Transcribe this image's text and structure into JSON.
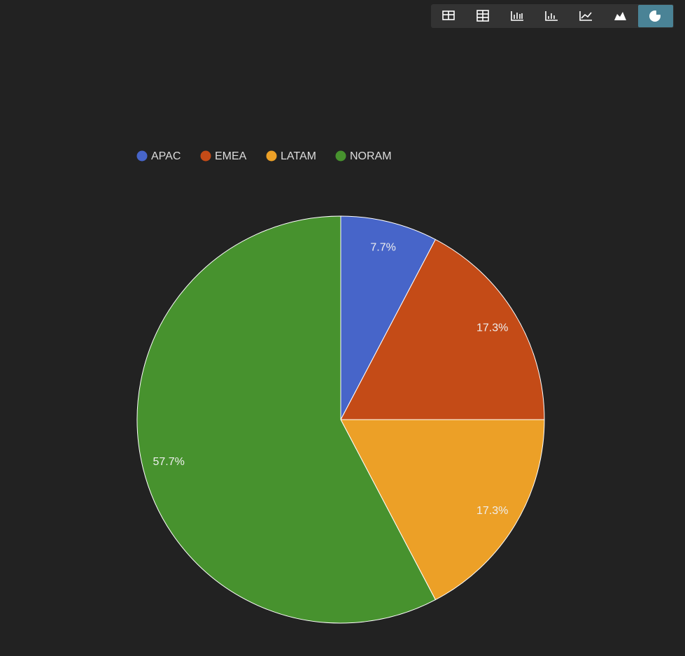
{
  "chart_data": {
    "type": "pie",
    "categories": [
      "APAC",
      "EMEA",
      "LATAM",
      "NORAM"
    ],
    "values": [
      7.7,
      17.3,
      17.3,
      57.7
    ],
    "value_labels": [
      "7.7%",
      "17.3%",
      "17.3%",
      "57.7%"
    ],
    "colors": [
      "#4765c9",
      "#c44b17",
      "#eca027",
      "#47922e"
    ],
    "legend": "top"
  }
}
